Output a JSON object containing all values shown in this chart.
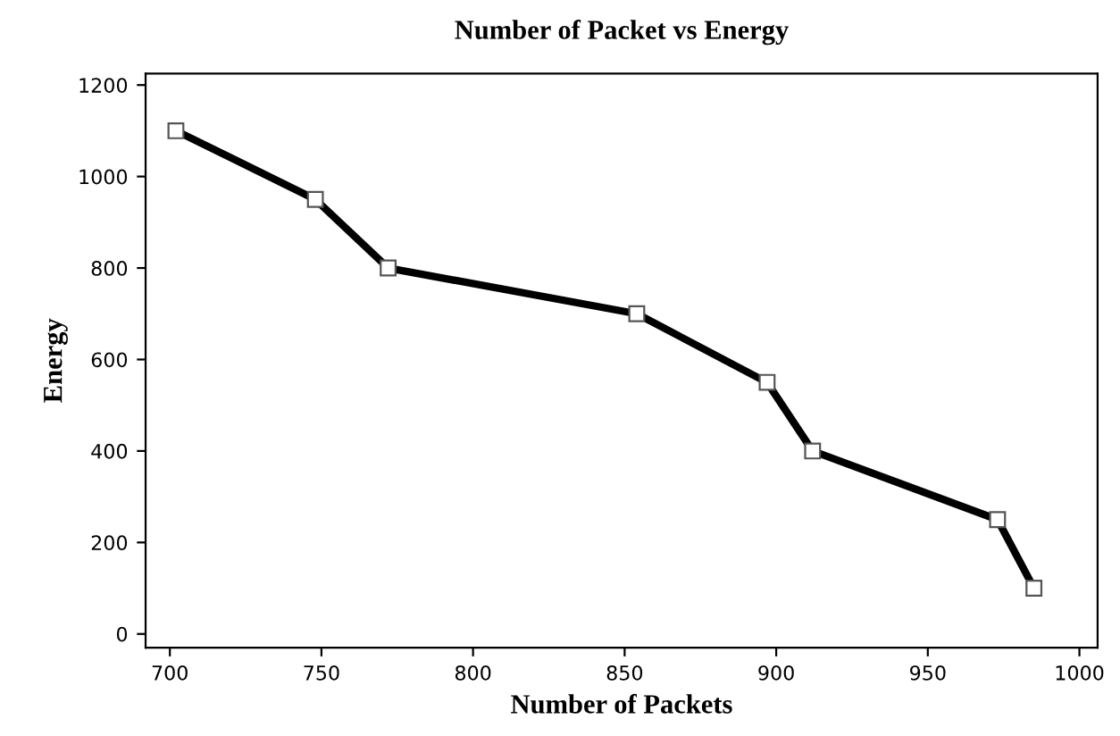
{
  "chart_data": {
    "type": "line",
    "title": "Number of Packet vs Energy",
    "xlabel": "Number of Packets",
    "ylabel": "Energy",
    "x": [
      702,
      748,
      772,
      854,
      897,
      912,
      973,
      985
    ],
    "series": [
      {
        "color": "#000000",
        "values": [
          1100,
          950,
          800,
          700,
          550,
          400,
          250,
          100
        ]
      }
    ],
    "xlim": [
      692,
      1006
    ],
    "xticks": [
      700,
      750,
      800,
      850,
      900,
      950,
      1000
    ],
    "ylim": [
      -30,
      1225
    ],
    "yticks": [
      0,
      200,
      400,
      600,
      800,
      1000,
      1200
    ],
    "grid": false,
    "legend": false,
    "marker": "square",
    "line_style": "solid"
  }
}
